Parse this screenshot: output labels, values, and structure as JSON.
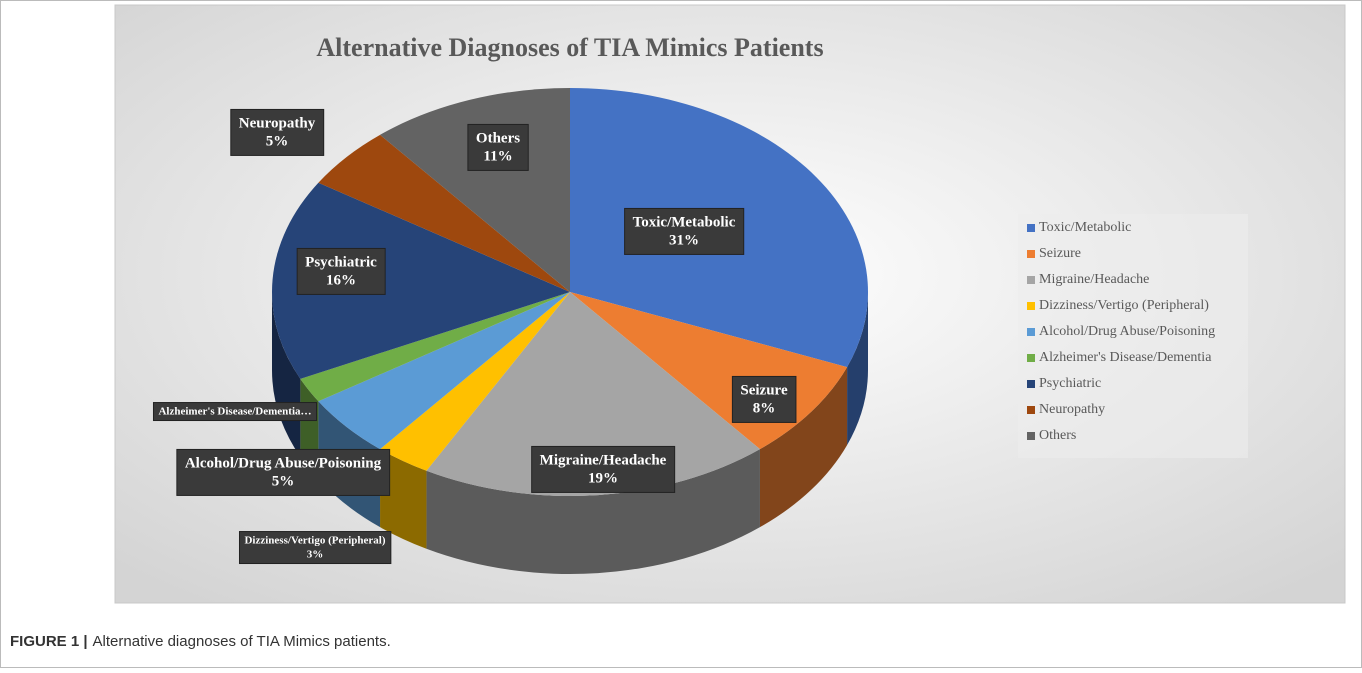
{
  "chart_data": {
    "type": "pie3d",
    "title": "Alternative Diagnoses of TIA Mimics Patients",
    "categories": [
      "Toxic/Metabolic",
      "Seizure",
      "Migraine/Headache",
      "Dizziness/Vertigo (Peripheral)",
      "Alcohol/Drug Abuse/Poisoning",
      "Alzheimer's Disease/Dementia",
      "Psychiatric",
      "Neuropathy",
      "Others"
    ],
    "values": [
      31,
      8,
      19,
      3,
      5,
      2,
      16,
      5,
      11
    ],
    "value_labels": [
      "31%",
      "8%",
      "19%",
      "3%",
      "5%",
      null,
      "16%",
      "5%",
      "11%"
    ],
    "label_names": [
      "Toxic/Metabolic",
      "Seizure",
      "Migraine/Headache",
      "Dizziness/Vertigo (Peripheral)",
      "Alcohol/Drug Abuse/Poisoning",
      "Alzheimer's Disease/Dementia…",
      "Psychiatric",
      "Neuropathy",
      "Others"
    ],
    "colors": [
      "#4472c4",
      "#ed7d31",
      "#a5a5a5",
      "#ffc000",
      "#5b9bd5",
      "#70ad47",
      "#264478",
      "#9e480e",
      "#636363"
    ],
    "legend": "right"
  },
  "caption": {
    "label": "FIGURE 1 |",
    "text": "Alternative diagnoses of TIA Mimics patients."
  }
}
